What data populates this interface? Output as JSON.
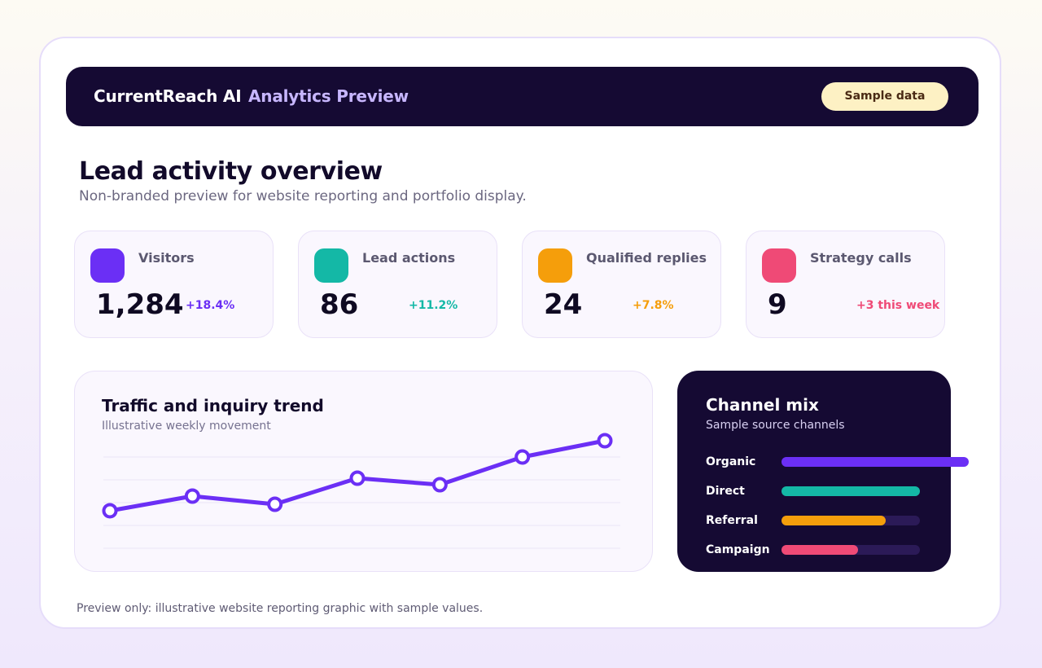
{
  "header": {
    "brand": "CurrentReach AI",
    "subtitle": "Analytics Preview",
    "badge": "Sample data"
  },
  "page": {
    "title": "Lead activity overview",
    "subtitle": "Non-branded preview for website reporting and portfolio display."
  },
  "kpis": [
    {
      "label": "Visitors",
      "value": "1,284",
      "delta": "+18.4%",
      "color": "#6b2ff5"
    },
    {
      "label": "Lead actions",
      "value": "86",
      "delta": "+11.2%",
      "color": "#14b8a6"
    },
    {
      "label": "Qualified replies",
      "value": "24",
      "delta": "+7.8%",
      "color": "#f59e0b"
    },
    {
      "label": "Strategy calls",
      "value": "9",
      "delta": "+3 this week",
      "color": "#ef4a76"
    }
  ],
  "trend": {
    "title": "Traffic and inquiry trend",
    "subtitle": "Illustrative weekly movement",
    "color": "#6b2ff5"
  },
  "chart_data": {
    "type": "line",
    "title": "Traffic and inquiry trend",
    "subtitle": "Illustrative weekly movement",
    "xlabel": "",
    "ylabel": "",
    "x": [
      1,
      2,
      3,
      4,
      5,
      6,
      7
    ],
    "values": [
      12,
      21,
      16,
      32,
      28,
      45,
      55
    ],
    "ylim": [
      0,
      60
    ],
    "grid": true,
    "axis_labels_shown": false
  },
  "channel_mix": {
    "title": "Channel mix",
    "subtitle": "Sample source channels",
    "channels": [
      {
        "label": "Organic",
        "share": 1.35,
        "color": "#6b2ff5"
      },
      {
        "label": "Direct",
        "share": 1.0,
        "color": "#14b8a6"
      },
      {
        "label": "Referral",
        "share": 0.75,
        "color": "#f59e0b"
      },
      {
        "label": "Campaign",
        "share": 0.55,
        "color": "#ef4a76"
      }
    ]
  },
  "footer": {
    "note": "Preview only: illustrative website reporting graphic with sample values."
  }
}
